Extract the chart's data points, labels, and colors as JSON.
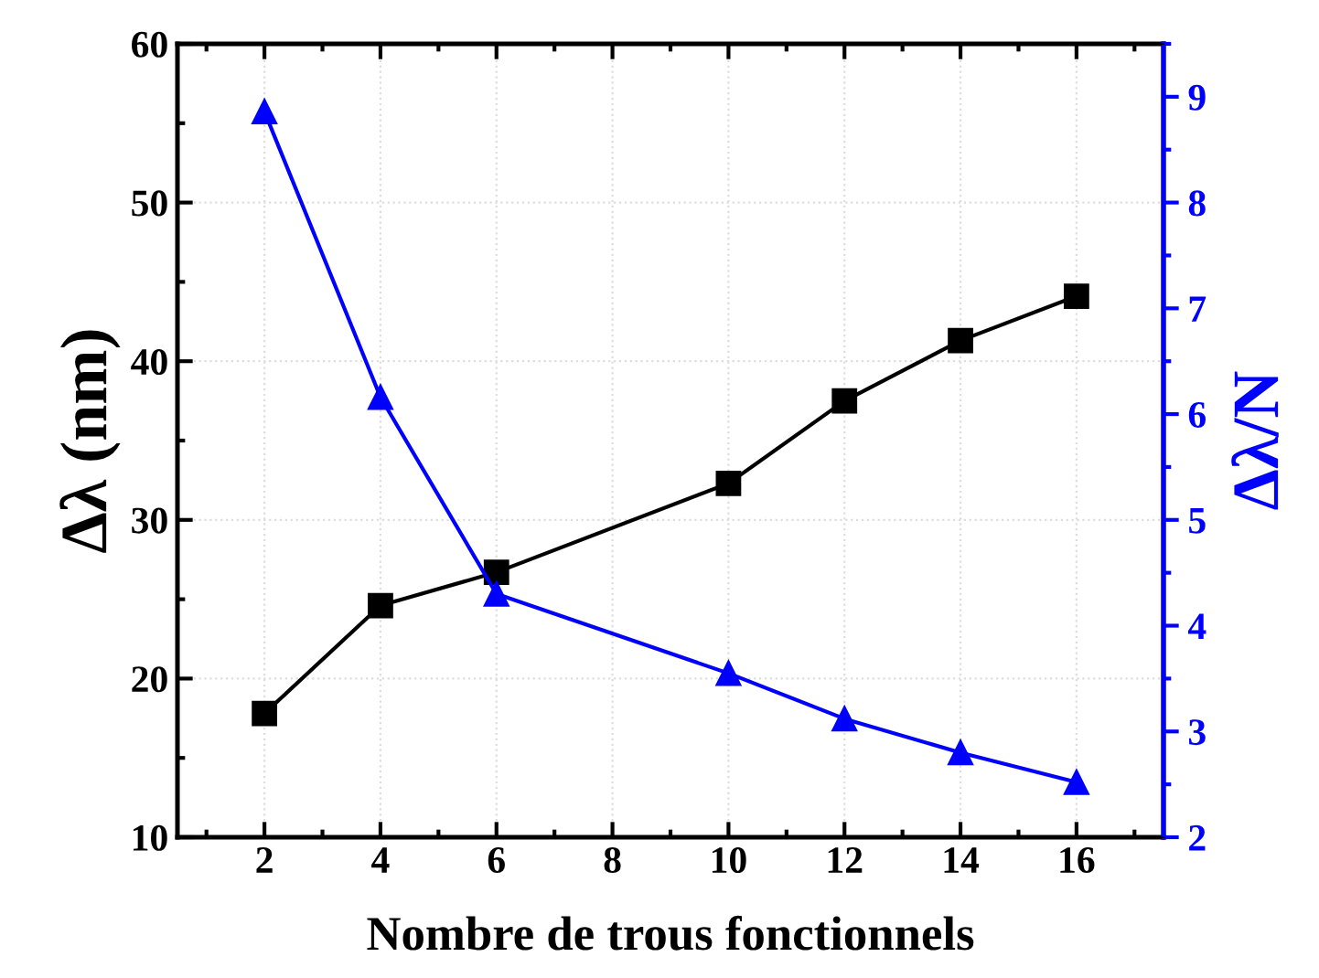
{
  "chart_data": {
    "type": "line",
    "xlabel": "Nombre de trous fonctionnels",
    "ylabel": "Δλ (nm)",
    "y2label": "Δλ/N",
    "x": [
      2,
      4,
      6,
      10,
      12,
      14,
      16
    ],
    "series": [
      {
        "color": "#000000",
        "marker": "square",
        "values": [
          17.8,
          24.6,
          26.7,
          32.3,
          37.5,
          41.3,
          44.1
        ]
      },
      {
        "color": "#0000ff",
        "marker": "triangle",
        "axis": "y2",
        "values": [
          8.86,
          6.16,
          4.3,
          3.55,
          3.12,
          2.8,
          2.52
        ]
      }
    ],
    "xlim": [
      0.5,
      17.5
    ],
    "xticks": [
      2,
      4,
      6,
      8,
      10,
      12,
      14,
      16
    ],
    "ylim": [
      10,
      60
    ],
    "yticks": [
      10,
      20,
      30,
      40,
      50,
      60
    ],
    "y2lim": [
      2,
      9.5
    ],
    "y2ticks": [
      2,
      3,
      4,
      5,
      6,
      7,
      8,
      9
    ],
    "grid": true,
    "legend": false,
    "line_style": "solid"
  }
}
